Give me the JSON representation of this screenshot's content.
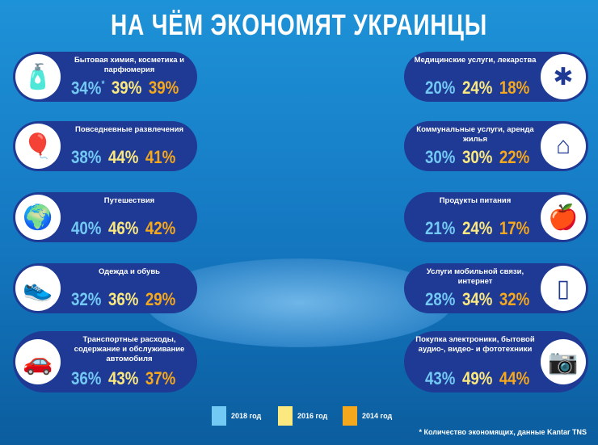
{
  "title": "НА ЧЁМ ЭКОНОМЯТ УКРАИНЦЫ",
  "chart_data": {
    "type": "table",
    "title": "НА ЧЁМ ЭКОНОМЯТ УКРАИНЦЫ",
    "series_names": [
      "2018 год",
      "2016 год",
      "2014 год"
    ],
    "colors": [
      "#72c9f3",
      "#fbe97f",
      "#f6a81c"
    ],
    "rows": [
      {
        "label": "Бытовая химия, косметика и парфюмерия",
        "icon": "spray-bottle-icon",
        "values": [
          "34%",
          "39%",
          "39%"
        ],
        "star": "*"
      },
      {
        "label": "Повседневные развлечения",
        "icon": "balloons-icon",
        "values": [
          "38%",
          "44%",
          "41%"
        ]
      },
      {
        "label": "Путешествия",
        "icon": "globe-plane-icon",
        "values": [
          "40%",
          "46%",
          "42%"
        ]
      },
      {
        "label": "Одежда и обувь",
        "icon": "shoe-icon",
        "values": [
          "32%",
          "36%",
          "29%"
        ]
      },
      {
        "label": "Транспортные расходы, содержание и обслуживание автомобиля",
        "icon": "car-icon",
        "values": [
          "36%",
          "43%",
          "37%"
        ]
      },
      {
        "label": "Медицинские услуги, лекарства",
        "icon": "medical-star-icon",
        "values": [
          "20%",
          "24%",
          "18%"
        ]
      },
      {
        "label": "Коммунальные услуги, аренда жилья",
        "icon": "house-icon",
        "values": [
          "30%",
          "30%",
          "22%"
        ]
      },
      {
        "label": "Продукты питания",
        "icon": "apple-icon",
        "values": [
          "21%",
          "24%",
          "17%"
        ]
      },
      {
        "label": "Услуги мобильной связи, интернет",
        "icon": "phone-icon",
        "values": [
          "28%",
          "34%",
          "32%"
        ]
      },
      {
        "label": "Покупка электроники, бытовой аудио-, видео- и фототехники",
        "icon": "camera-icon",
        "values": [
          "43%",
          "49%",
          "44%"
        ]
      }
    ]
  },
  "legend": [
    "2018 год",
    "2016 год",
    "2014 год"
  ],
  "note": "* Количество экономящих, данные Kantar TNS"
}
